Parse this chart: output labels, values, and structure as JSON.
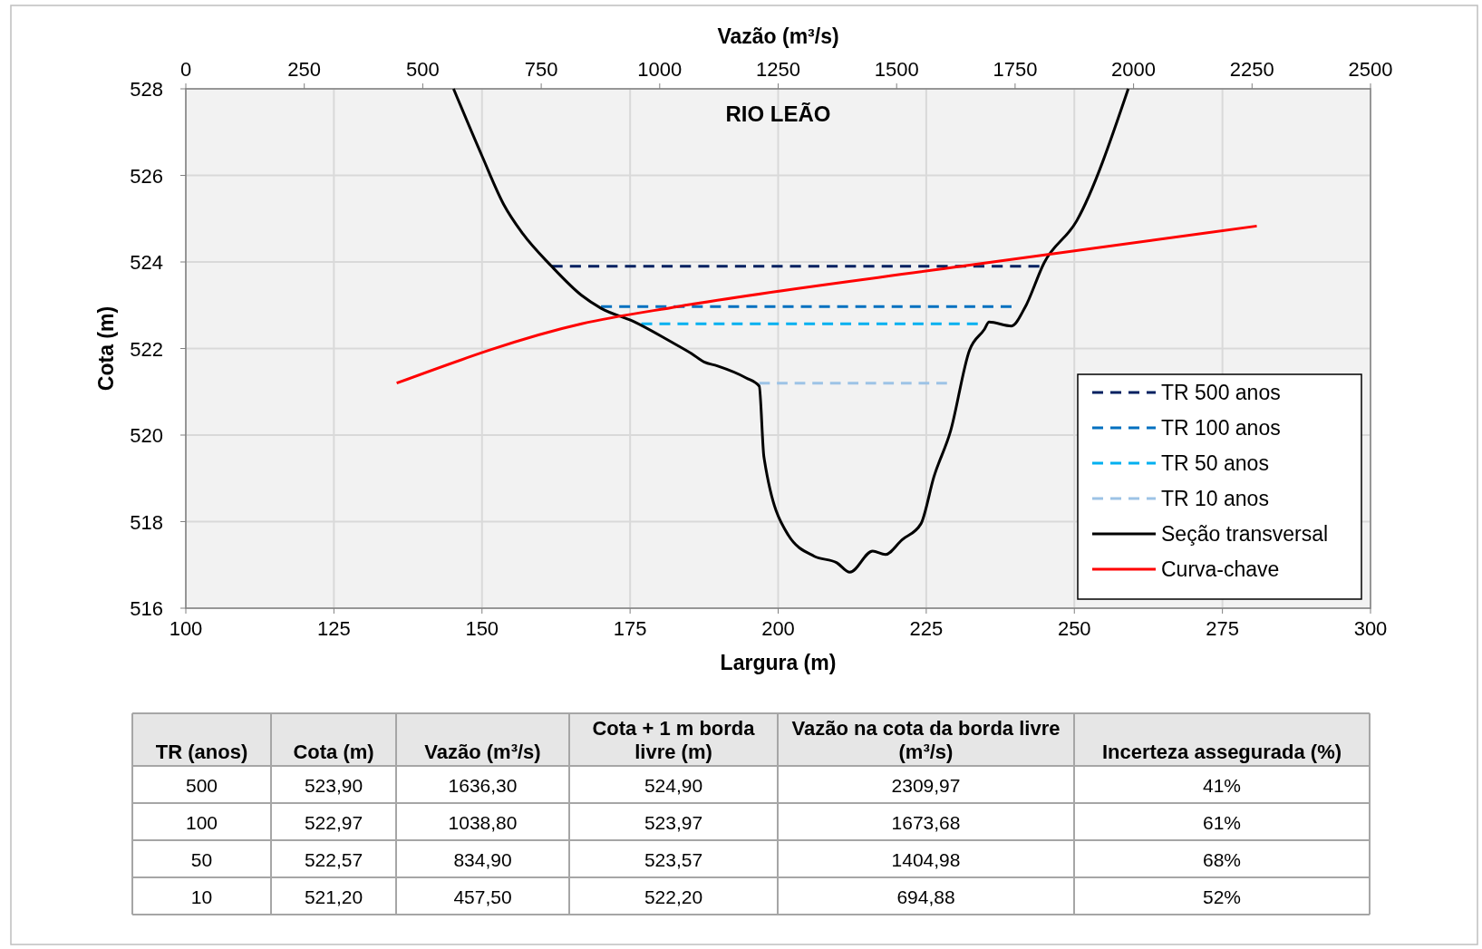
{
  "chart_data": [
    {
      "type": "line",
      "title": "RIO LEÃO",
      "xlabel": "Largura (m)",
      "x2label": "Vazão (m³/s)",
      "ylabel": "Cota (m)",
      "xlim": [
        100,
        300
      ],
      "xticks": [
        100,
        125,
        150,
        175,
        200,
        225,
        250,
        275,
        300
      ],
      "x2lim": [
        0,
        2500
      ],
      "x2ticks": [
        0,
        250,
        500,
        750,
        1000,
        1250,
        1500,
        1750,
        2000,
        2250,
        2500
      ],
      "ylim": [
        516,
        528
      ],
      "yticks": [
        516,
        518,
        520,
        522,
        524,
        526,
        528
      ],
      "grid": true,
      "legend": "bottom right",
      "series": [
        {
          "name": "TR 500 anos",
          "color": "#002060",
          "line_style": "dashed",
          "x": [
            161.75,
            244.1
          ],
          "values": [
            523.9,
            523.9
          ]
        },
        {
          "name": "TR 100 anos",
          "color": "#0070c0",
          "line_style": "dashed",
          "x": [
            170.1,
            239.4
          ],
          "values": [
            522.97,
            522.97
          ]
        },
        {
          "name": "TR 50 anos",
          "color": "#00b0f0",
          "line_style": "dashed",
          "x": [
            176.9,
            233.7
          ],
          "values": [
            522.57,
            522.57
          ]
        },
        {
          "name": "TR 10 anos",
          "color": "#9dc3e6",
          "line_style": "dashed",
          "x": [
            196.8,
            228.5
          ],
          "values": [
            521.2,
            521.2
          ]
        },
        {
          "name": "Seção transversal",
          "color": "#000000",
          "line_style": "solid",
          "x": [
            145.2,
            150,
            153.7,
            156.9,
            161.75,
            166.8,
            170.1,
            175.5,
            182.1,
            185.4,
            187.5,
            189.7,
            194.6,
            196.8,
            197.6,
            201.7,
            206.1,
            209.9,
            212.1,
            215.95,
            218.1,
            220.9,
            224.1,
            226.3,
            229.1,
            232.3,
            234.8,
            235.6,
            239.4,
            241.6,
            244.9,
            250.4,
            259.1
          ],
          "values": [
            528,
            526.45,
            525.32,
            524.65,
            523.9,
            523.23,
            522.93,
            522.63,
            522.14,
            521.88,
            521.69,
            521.6,
            521.32,
            521.13,
            519.49,
            517.69,
            517.2,
            517.05,
            516.83,
            517.32,
            517.24,
            517.58,
            517.95,
            519.04,
            520.09,
            521.96,
            522.44,
            522.61,
            522.52,
            522.93,
            523.98,
            524.95,
            528
          ]
        },
        {
          "name": "Curva-chave",
          "color": "#ff0000",
          "line_style": "solid",
          "axis": "x2",
          "x": [
            445,
            834.9,
            1038.8,
            1636.3,
            2260
          ],
          "values": [
            521.2,
            522.57,
            522.97,
            523.9,
            524.83
          ]
        }
      ]
    },
    {
      "type": "other",
      "categories": [
        "TR (anos)",
        "Cota (m)",
        "Vazão (m³/s)",
        "Cota + 1 m borda livre (m)",
        "Vazão na cota da borda livre (m³/s)",
        "Incerteza assegurada (%)"
      ],
      "cell_labels": [
        [
          "500",
          "523,90",
          "1636,30",
          "524,90",
          "2309,97",
          "41%"
        ],
        [
          "100",
          "522,97",
          "1038,80",
          "523,97",
          "1673,68",
          "61%"
        ],
        [
          "50",
          "522,57",
          "834,90",
          "523,57",
          "1404,98",
          "68%"
        ],
        [
          "10",
          "521,20",
          "457,50",
          "522,20",
          "694,88",
          "52%"
        ]
      ]
    }
  ]
}
